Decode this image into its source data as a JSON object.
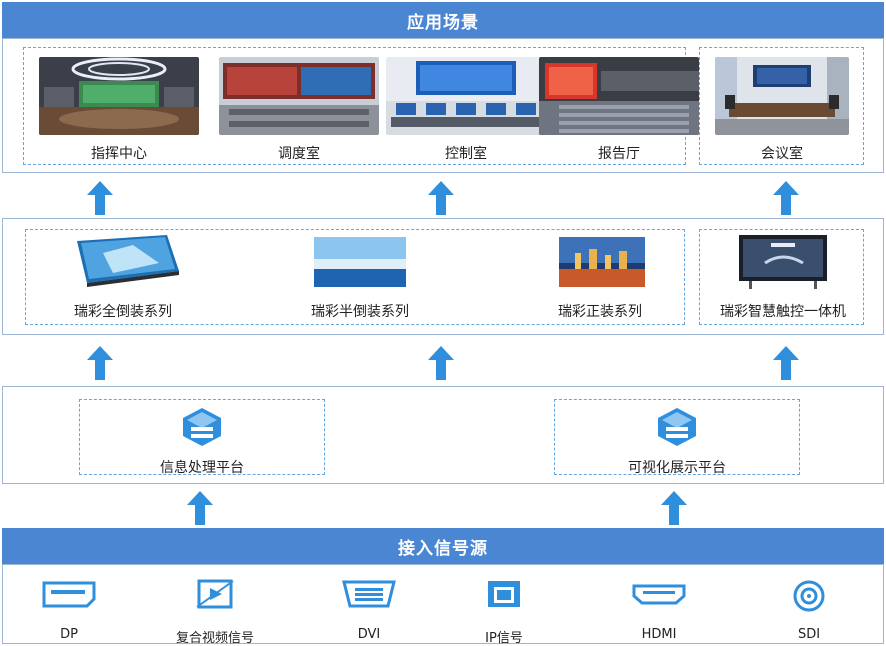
{
  "header": {
    "title": "应用场景"
  },
  "scenes": [
    {
      "label": "指挥中心"
    },
    {
      "label": "调度室"
    },
    {
      "label": "控制室"
    },
    {
      "label": "报告厅"
    },
    {
      "label": "会议室"
    }
  ],
  "products": [
    {
      "label": "瑞彩全倒装系列"
    },
    {
      "label": "瑞彩半倒装系列"
    },
    {
      "label": "瑞彩正装系列"
    },
    {
      "label": "瑞彩智慧触控一体机"
    }
  ],
  "platforms": [
    {
      "label": "信息处理平台",
      "icon": "server-cube-icon"
    },
    {
      "label": "可视化展示平台",
      "icon": "server-cube-icon"
    }
  ],
  "footer": {
    "title": "接入信号源"
  },
  "inputs": [
    {
      "label": "DP",
      "icon": "dp-port-icon"
    },
    {
      "label": "复合视频信号",
      "icon": "composite-video-icon"
    },
    {
      "label": "DVI",
      "icon": "dvi-port-icon"
    },
    {
      "label": "IP信号",
      "icon": "ethernet-port-icon"
    },
    {
      "label": "HDMI",
      "icon": "hdmi-port-icon"
    },
    {
      "label": "SDI",
      "icon": "sdi-port-icon"
    }
  ],
  "colors": {
    "accent": "#4a86d2",
    "arrow": "#2f8fdc",
    "dashed_border": "#64a6e0",
    "icon": "#2f8fdc"
  }
}
